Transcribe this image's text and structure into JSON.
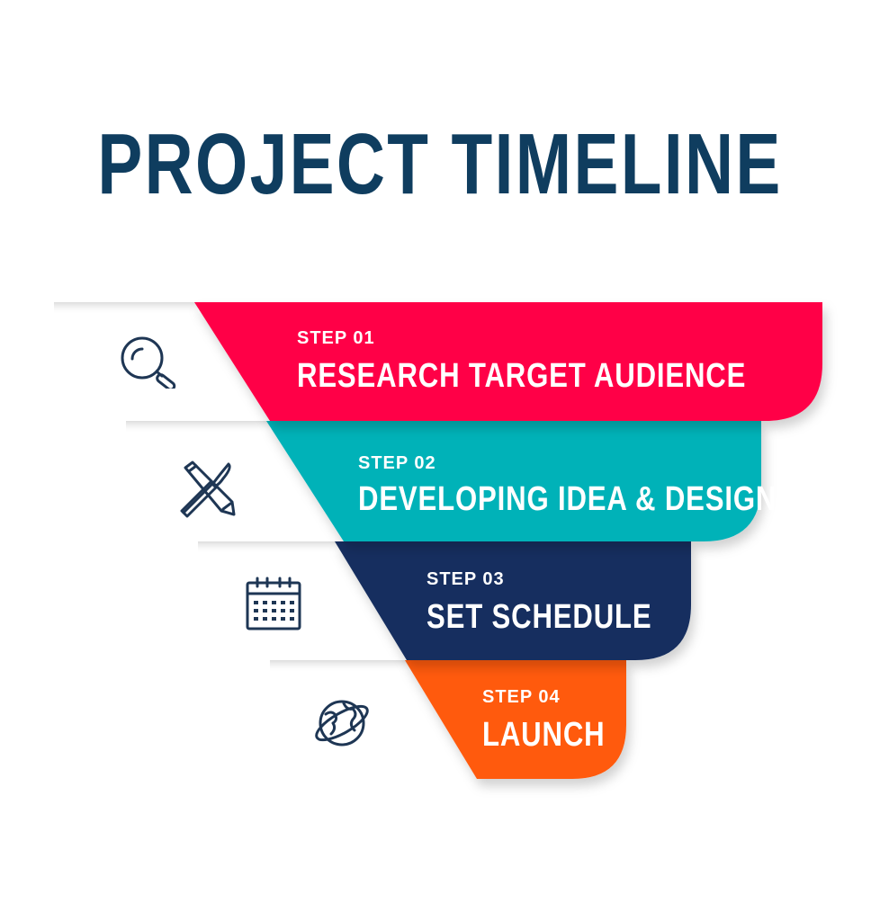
{
  "title": "PROJECT TIMELINE",
  "colors": {
    "title": "#0f3d5f",
    "step1": "#ff0046",
    "step2": "#00b2b8",
    "step3": "#142e5e",
    "step4": "#ff5a0a",
    "icon": "#1e3654"
  },
  "steps": [
    {
      "number": "STEP 01",
      "label": "RESEARCH TARGET AUDIENCE",
      "icon": "magnifier-icon"
    },
    {
      "number": "STEP 02",
      "label": "DEVELOPING IDEA & DESIGN",
      "icon": "pencil-brush-icon"
    },
    {
      "number": "STEP 03",
      "label": "SET SCHEDULE",
      "icon": "calendar-icon"
    },
    {
      "number": "STEP 04",
      "label": "LAUNCH",
      "icon": "globe-icon"
    }
  ]
}
